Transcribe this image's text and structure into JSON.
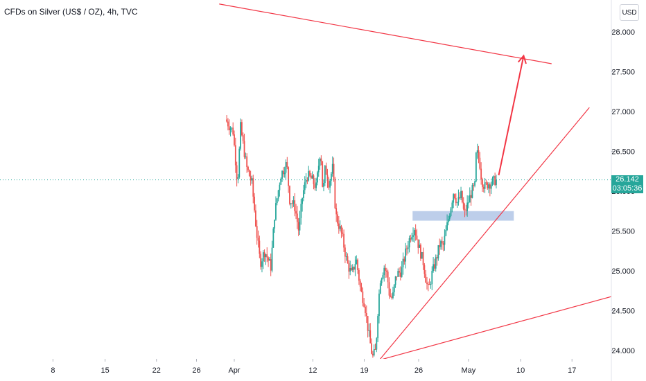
{
  "header": {
    "title": "CFDs on Silver (US$ / OZ), 4h, TVC",
    "currency_button": "USD"
  },
  "price_badge": {
    "price": "26.142",
    "countdown": "03:05:36",
    "color": "#26a69a"
  },
  "colors": {
    "up": "#26a69a",
    "down": "#ef5350",
    "drawing": "#f23645",
    "zone": "#b2c5e6"
  },
  "chart_data": {
    "type": "candlestick",
    "title": "CFDs on Silver (US$ / OZ), 4h, TVC",
    "y_axis": {
      "side": "right",
      "range": [
        23.9,
        28.2
      ],
      "ticks": [
        "24.000",
        "24.500",
        "25.000",
        "25.500",
        "26.000",
        "26.500",
        "27.000",
        "27.500",
        "28.000"
      ]
    },
    "x_axis": {
      "ticks": [
        "8",
        "15",
        "22",
        "26",
        "Apr",
        "12",
        "19",
        "26",
        "May",
        "10",
        "17"
      ]
    },
    "grid": false,
    "price_line": 26.142,
    "price_path": [
      [
        -1.0,
        26.9
      ],
      [
        0.0,
        26.75
      ],
      [
        0.6,
        26.1
      ],
      [
        1.0,
        26.8
      ],
      [
        1.8,
        26.3
      ],
      [
        2.5,
        26.1
      ],
      [
        3.1,
        25.5
      ],
      [
        3.6,
        25.1
      ],
      [
        4.2,
        25.25
      ],
      [
        5.0,
        25.05
      ],
      [
        5.5,
        25.7
      ],
      [
        6.3,
        26.2
      ],
      [
        7.1,
        26.35
      ],
      [
        7.5,
        25.9
      ],
      [
        8.2,
        25.8
      ],
      [
        8.7,
        25.5
      ],
      [
        9.2,
        25.95
      ],
      [
        9.8,
        26.2
      ],
      [
        10.4,
        26.15
      ],
      [
        11.0,
        26.05
      ],
      [
        11.6,
        26.55
      ],
      [
        11.9,
        25.95
      ],
      [
        12.2,
        26.3
      ],
      [
        12.7,
        26.1
      ],
      [
        13.2,
        26.3
      ],
      [
        13.6,
        25.7
      ],
      [
        14.4,
        25.45
      ],
      [
        15.1,
        25.1
      ],
      [
        15.7,
        24.95
      ],
      [
        16.3,
        25.15
      ],
      [
        16.9,
        24.75
      ],
      [
        17.4,
        24.6
      ],
      [
        17.9,
        24.25
      ],
      [
        18.3,
        24.0
      ],
      [
        18.5,
        23.92
      ],
      [
        18.9,
        24.0
      ],
      [
        19.2,
        24.55
      ],
      [
        19.5,
        24.9
      ],
      [
        20.0,
        25.05
      ],
      [
        20.4,
        24.95
      ],
      [
        20.7,
        24.7
      ],
      [
        21.1,
        24.65
      ],
      [
        21.6,
        24.95
      ],
      [
        22.3,
        25.0
      ],
      [
        22.9,
        25.25
      ],
      [
        23.5,
        25.45
      ],
      [
        24.0,
        25.55
      ],
      [
        24.6,
        25.3
      ],
      [
        25.2,
        25.1
      ],
      [
        25.6,
        24.85
      ],
      [
        25.9,
        24.75
      ],
      [
        26.3,
        24.95
      ],
      [
        26.9,
        25.15
      ],
      [
        27.4,
        25.35
      ],
      [
        27.8,
        25.3
      ],
      [
        28.3,
        25.55
      ],
      [
        28.8,
        25.8
      ],
      [
        29.2,
        26.0
      ],
      [
        29.7,
        25.85
      ],
      [
        30.2,
        25.95
      ],
      [
        30.6,
        25.7
      ],
      [
        31.1,
        25.85
      ],
      [
        31.6,
        26.0
      ],
      [
        32.0,
        26.05
      ],
      [
        32.2,
        26.5
      ],
      [
        32.6,
        26.4
      ],
      [
        32.9,
        26.15
      ],
      [
        33.3,
        26.05
      ],
      [
        33.8,
        26.1
      ],
      [
        34.2,
        26.1
      ],
      [
        34.7,
        26.14
      ]
    ],
    "drawings": [
      {
        "type": "trendline",
        "name": "upper resistance line",
        "points": [
          [
            -2.0,
            28.35
          ],
          [
            42.0,
            27.6
          ]
        ]
      },
      {
        "type": "trendline",
        "name": "rising support line",
        "points": [
          [
            19.2,
            23.88
          ],
          [
            47.0,
            27.05
          ]
        ]
      },
      {
        "type": "trendline",
        "name": "lower support line",
        "points": [
          [
            19.2,
            23.88
          ],
          [
            50.0,
            24.68
          ]
        ]
      },
      {
        "type": "rectangle",
        "name": "support zone",
        "x0": 23.6,
        "x1": 37.0,
        "y0": 25.63,
        "y1": 25.75
      },
      {
        "type": "arrow",
        "name": "projection arrow",
        "points": [
          [
            35.0,
            26.2
          ],
          [
            38.3,
            27.7
          ]
        ]
      }
    ]
  }
}
